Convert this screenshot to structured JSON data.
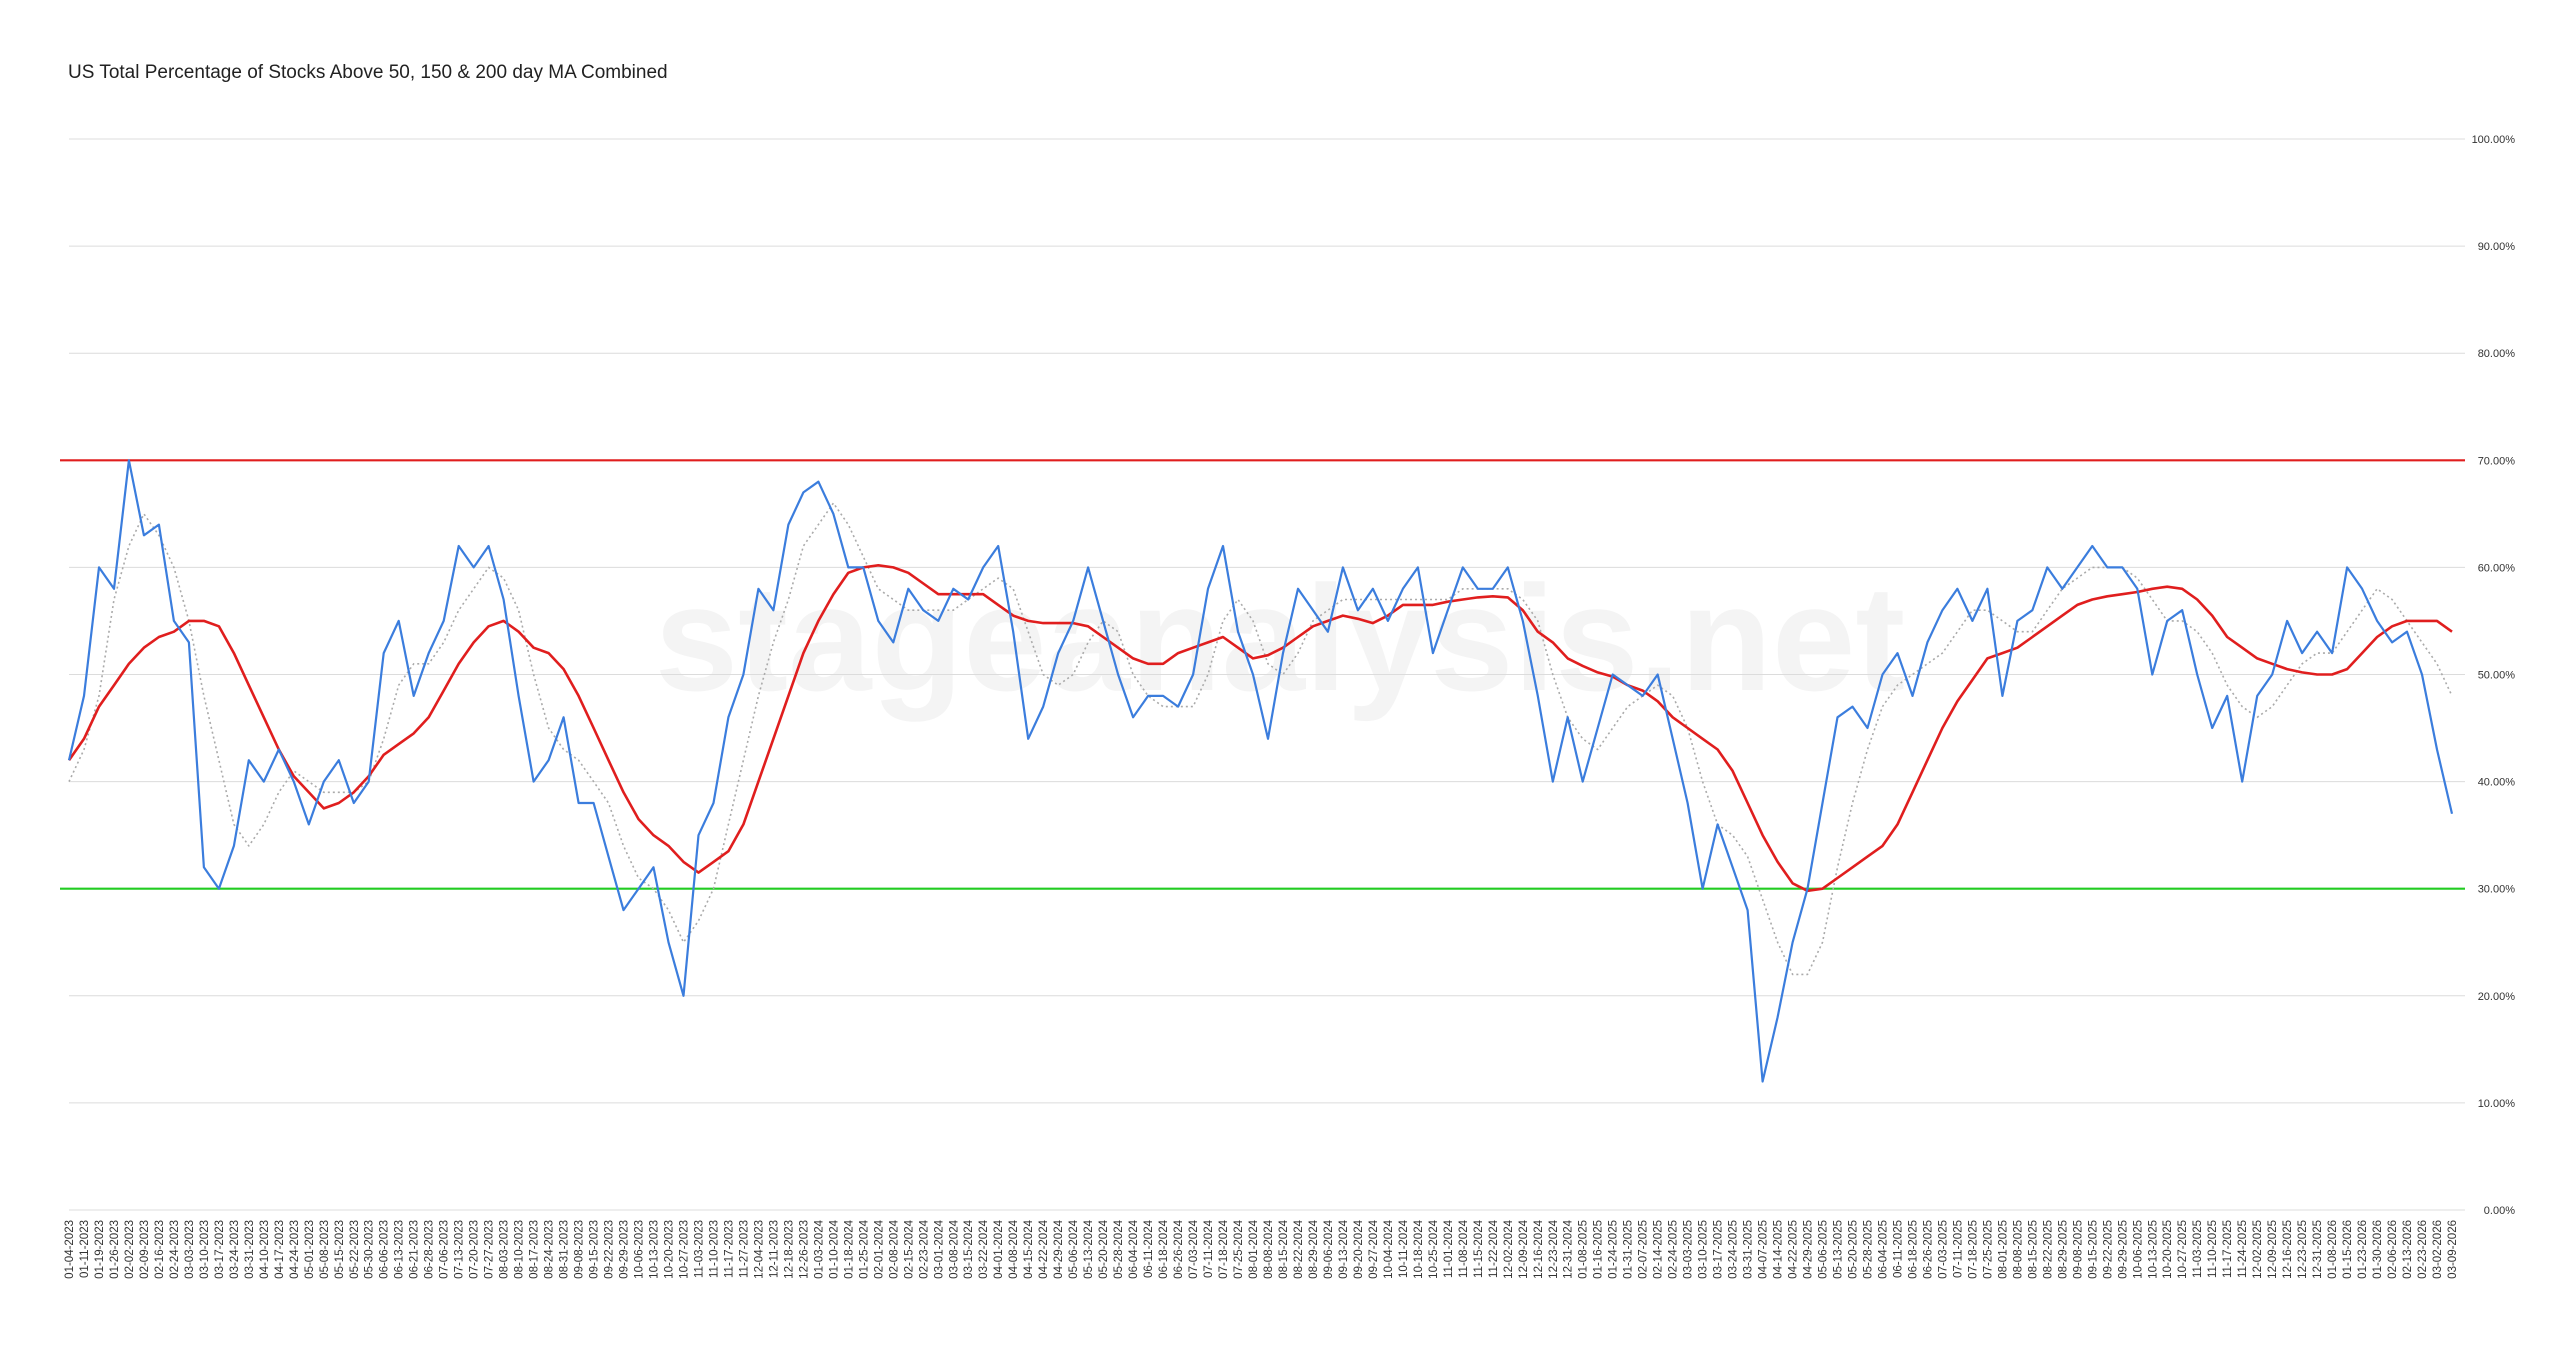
{
  "chart_data": {
    "type": "line",
    "title": "US Total Percentage of Stocks Above 50, 150 & 200 day MA Combined",
    "watermark": "stageanalysis.net",
    "categories": [
      "01-04-2023",
      "01-11-2023",
      "01-19-2023",
      "01-26-2023",
      "02-02-2023",
      "02-09-2023",
      "02-16-2023",
      "02-24-2023",
      "03-03-2023",
      "03-10-2023",
      "03-17-2023",
      "03-24-2023",
      "03-31-2023",
      "04-10-2023",
      "04-17-2023",
      "04-24-2023",
      "05-01-2023",
      "05-08-2023",
      "05-15-2023",
      "05-22-2023",
      "05-30-2023",
      "06-06-2023",
      "06-13-2023",
      "06-21-2023",
      "06-28-2023",
      "07-06-2023",
      "07-13-2023",
      "07-20-2023",
      "07-27-2023",
      "08-03-2023",
      "08-10-2023",
      "08-17-2023",
      "08-24-2023",
      "08-31-2023",
      "09-08-2023",
      "09-15-2023",
      "09-22-2023",
      "09-29-2023",
      "10-06-2023",
      "10-13-2023",
      "10-20-2023",
      "10-27-2023",
      "11-03-2023",
      "11-10-2023",
      "11-17-2023",
      "11-27-2023",
      "12-04-2023",
      "12-11-2023",
      "12-18-2023",
      "12-26-2023",
      "01-03-2024",
      "01-10-2024",
      "01-18-2024",
      "01-25-2024",
      "02-01-2024",
      "02-08-2024",
      "02-15-2024",
      "02-23-2024",
      "03-01-2024",
      "03-08-2024",
      "03-15-2024",
      "03-22-2024",
      "04-01-2024",
      "04-08-2024",
      "04-15-2024",
      "04-22-2024",
      "04-29-2024",
      "05-06-2024",
      "05-13-2024",
      "05-20-2024",
      "05-28-2024",
      "06-04-2024",
      "06-11-2024",
      "06-18-2024",
      "06-26-2024",
      "07-03-2024",
      "07-11-2024",
      "07-18-2024",
      "07-25-2024",
      "08-01-2024",
      "08-08-2024",
      "08-15-2024",
      "08-22-2024",
      "08-29-2024",
      "09-06-2024",
      "09-13-2024",
      "09-20-2024",
      "09-27-2024",
      "10-04-2024",
      "10-11-2024",
      "10-18-2024",
      "10-25-2024",
      "11-01-2024",
      "11-08-2024",
      "11-15-2024",
      "11-22-2024",
      "12-02-2024",
      "12-09-2024",
      "12-16-2024",
      "12-23-2024",
      "12-31-2024",
      "01-08-2025",
      "01-16-2025",
      "01-24-2025",
      "01-31-2025",
      "02-07-2025",
      "02-14-2025",
      "02-24-2025",
      "03-03-2025",
      "03-10-2025",
      "03-17-2025",
      "03-24-2025",
      "03-31-2025",
      "04-07-2025",
      "04-14-2025",
      "04-22-2025",
      "04-29-2025",
      "05-06-2025",
      "05-13-2025",
      "05-20-2025",
      "05-28-2025",
      "06-04-2025",
      "06-11-2025",
      "06-18-2025",
      "06-26-2025",
      "07-03-2025",
      "07-11-2025",
      "07-18-2025",
      "07-25-2025",
      "08-01-2025",
      "08-08-2025",
      "08-15-2025",
      "08-22-2025",
      "08-29-2025",
      "09-08-2025",
      "09-15-2025",
      "09-22-2025",
      "09-29-2025",
      "10-06-2025",
      "10-13-2025",
      "10-20-2025",
      "10-27-2025",
      "11-03-2025",
      "11-10-2025",
      "11-17-2025",
      "11-24-2025",
      "12-02-2025",
      "12-09-2025",
      "12-16-2025",
      "12-23-2025",
      "12-31-2025",
      "01-08-2026",
      "01-15-2026",
      "01-23-2026",
      "01-30-2026",
      "02-06-2026",
      "02-13-2026",
      "02-23-2026",
      "03-02-2026",
      "03-09-2026"
    ],
    "series": [
      {
        "color": "#3b7ddd",
        "style": "solid",
        "width": 2.2,
        "values": [
          42,
          48,
          60,
          58,
          70,
          63,
          64,
          55,
          53,
          32,
          30,
          34,
          42,
          40,
          43,
          40,
          36,
          40,
          42,
          38,
          40,
          52,
          55,
          48,
          52,
          55,
          62,
          60,
          62,
          57,
          48,
          40,
          42,
          46,
          38,
          38,
          33,
          28,
          30,
          32,
          25,
          20,
          35,
          38,
          46,
          50,
          58,
          56,
          64,
          67,
          68,
          65,
          60,
          60,
          55,
          53,
          58,
          56,
          55,
          58,
          57,
          60,
          62,
          54,
          44,
          47,
          52,
          55,
          60,
          55,
          50,
          46,
          48,
          48,
          47,
          50,
          58,
          62,
          54,
          50,
          44,
          52,
          58,
          56,
          54,
          60,
          56,
          58,
          55,
          58,
          60,
          52,
          56,
          60,
          58,
          58,
          60,
          55,
          48,
          40,
          46,
          40,
          45,
          50,
          49,
          48,
          50,
          44,
          38,
          30,
          36,
          32,
          28,
          12,
          18,
          25,
          30,
          38,
          46,
          47,
          45,
          50,
          52,
          48,
          53,
          56,
          58,
          55,
          58,
          48,
          55,
          56,
          60,
          58,
          60,
          62,
          60,
          60,
          58,
          50,
          55,
          56,
          50,
          45,
          48,
          40,
          48,
          50,
          55,
          52,
          54,
          52,
          60,
          58,
          55,
          53,
          54,
          50,
          43,
          37
        ]
      },
      {
        "color": "#aaaaaa",
        "style": "dotted",
        "width": 1.6,
        "values": [
          40,
          43,
          48,
          57,
          62,
          65,
          63,
          60,
          55,
          48,
          42,
          36,
          34,
          36,
          39,
          41,
          40,
          39,
          39,
          39,
          40,
          44,
          49,
          51,
          51,
          53,
          56,
          58,
          60,
          59,
          56,
          50,
          45,
          43,
          42,
          40,
          38,
          34,
          31,
          30,
          28,
          25,
          27,
          30,
          36,
          42,
          48,
          53,
          57,
          62,
          64,
          66,
          64,
          61,
          58,
          57,
          56,
          56,
          56,
          56,
          57,
          58,
          59,
          58,
          54,
          50,
          49,
          50,
          53,
          55,
          54,
          50,
          48,
          47,
          47,
          47,
          50,
          55,
          57,
          55,
          51,
          50,
          52,
          55,
          56,
          57,
          57,
          57,
          57,
          57,
          57,
          57,
          57,
          58,
          58,
          58,
          58,
          57,
          55,
          50,
          46,
          44,
          43,
          45,
          47,
          48,
          49,
          48,
          45,
          40,
          36,
          35,
          33,
          29,
          25,
          22,
          22,
          25,
          32,
          38,
          43,
          47,
          49,
          50,
          51,
          52,
          54,
          56,
          56,
          55,
          54,
          54,
          56,
          58,
          59,
          60,
          60,
          60,
          59,
          57,
          55,
          55,
          54,
          52,
          49,
          47,
          46,
          47,
          49,
          51,
          52,
          52,
          54,
          56,
          58,
          57,
          55,
          53,
          51,
          48
        ]
      },
      {
        "color": "#e01e1e",
        "style": "solid",
        "width": 2.6,
        "values": [
          42,
          44,
          47,
          49,
          51,
          52.5,
          53.5,
          54,
          55,
          55,
          54.5,
          52,
          49,
          46,
          43,
          40.5,
          39,
          37.5,
          38,
          39,
          40.5,
          42.5,
          43.5,
          44.5,
          46,
          48.5,
          51,
          53,
          54.5,
          55,
          54,
          52.5,
          52,
          50.5,
          48,
          45,
          42,
          39,
          36.5,
          35,
          34,
          32.5,
          31.5,
          32.5,
          33.5,
          36,
          40,
          44,
          48,
          52,
          55,
          57.5,
          59.5,
          60,
          60.2,
          60,
          59.5,
          58.5,
          57.5,
          57.5,
          57.5,
          57.5,
          56.5,
          55.5,
          55,
          54.8,
          54.8,
          54.8,
          54.5,
          53.5,
          52.5,
          51.5,
          51,
          51,
          52,
          52.5,
          53,
          53.5,
          52.5,
          51.5,
          51.8,
          52.5,
          53.5,
          54.5,
          55,
          55.5,
          55.2,
          54.8,
          55.5,
          56.5,
          56.5,
          56.5,
          56.8,
          57,
          57.2,
          57.3,
          57.2,
          56,
          54,
          53,
          51.5,
          50.8,
          50.2,
          49.8,
          49,
          48.5,
          47.5,
          46,
          45,
          44,
          43,
          41,
          38,
          35,
          32.5,
          30.5,
          29.8,
          30,
          31,
          32,
          33,
          34,
          36,
          39,
          42,
          45,
          47.5,
          49.5,
          51.5,
          52,
          52.5,
          53.5,
          54.5,
          55.5,
          56.5,
          57,
          57.3,
          57.5,
          57.7,
          58,
          58.2,
          58,
          57,
          55.5,
          53.5,
          52.5,
          51.5,
          51,
          50.5,
          50.2,
          50,
          50,
          50.5,
          52,
          53.5,
          54.5,
          55,
          55,
          55,
          54
        ]
      }
    ],
    "hlines": [
      {
        "value": 70,
        "color": "#e01e1e"
      },
      {
        "value": 30,
        "color": "#22cc22"
      }
    ],
    "ylim": [
      0,
      100
    ],
    "yticks": [
      {
        "value": 0,
        "label": "0.00%"
      },
      {
        "value": 10,
        "label": "10.00%"
      },
      {
        "value": 20,
        "label": "20.00%"
      },
      {
        "value": 30,
        "label": "30.00%"
      },
      {
        "value": 40,
        "label": "40.00%"
      },
      {
        "value": 50,
        "label": "50.00%"
      },
      {
        "value": 60,
        "label": "60.00%"
      },
      {
        "value": 70,
        "label": "70.00%"
      },
      {
        "value": 80,
        "label": "80.00%"
      },
      {
        "value": 90,
        "label": "90.00%"
      },
      {
        "value": 100,
        "label": "100.00%"
      }
    ],
    "grid": true
  }
}
